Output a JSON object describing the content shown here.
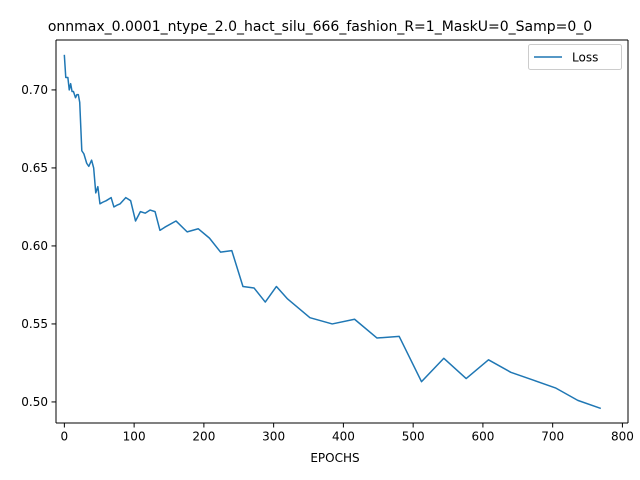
{
  "chart_data": {
    "type": "line",
    "title": "onnmax_0.0001_ntype_2.0_hact_silu_666_fashion_R=1_MaskU=0_Samp=0_0",
    "xlabel": "EPOCHS",
    "ylabel": "",
    "xlim": [
      -12,
      808
    ],
    "ylim": [
      0.4865,
      0.732
    ],
    "x_ticks": [
      0,
      100,
      200,
      300,
      400,
      500,
      600,
      700,
      800
    ],
    "x_tick_labels": [
      "0",
      "100",
      "200",
      "300",
      "400",
      "500",
      "600",
      "700",
      "800"
    ],
    "y_ticks": [
      0.5,
      0.55,
      0.6,
      0.65,
      0.7
    ],
    "y_tick_labels": [
      "0.50",
      "0.55",
      "0.60",
      "0.65",
      "0.70"
    ],
    "grid": false,
    "legend_position": "top-right",
    "series": [
      {
        "name": "Loss",
        "color": "#1f77b4",
        "x": [
          0,
          2,
          5,
          7,
          9,
          11,
          13,
          16,
          18,
          20,
          22,
          25,
          28,
          32,
          35,
          39,
          42,
          45,
          48,
          51,
          55,
          60,
          67,
          71,
          75,
          80,
          88,
          95,
          102,
          109,
          116,
          123,
          130,
          137,
          144,
          160,
          176,
          192,
          208,
          224,
          240,
          256,
          272,
          288,
          304,
          320,
          352,
          384,
          416,
          448,
          480,
          512,
          544,
          576,
          608,
          640,
          672,
          704,
          736,
          768
        ],
        "y": [
          0.722,
          0.708,
          0.708,
          0.7,
          0.704,
          0.699,
          0.699,
          0.695,
          0.697,
          0.697,
          0.692,
          0.661,
          0.659,
          0.653,
          0.651,
          0.655,
          0.65,
          0.634,
          0.638,
          0.627,
          0.628,
          0.629,
          0.631,
          0.625,
          0.626,
          0.627,
          0.631,
          0.629,
          0.616,
          0.622,
          0.621,
          0.623,
          0.622,
          0.61,
          0.612,
          0.616,
          0.609,
          0.611,
          0.605,
          0.596,
          0.597,
          0.574,
          0.573,
          0.564,
          0.574,
          0.566,
          0.554,
          0.55,
          0.553,
          0.541,
          0.542,
          0.513,
          0.528,
          0.515,
          0.527,
          0.519,
          0.514,
          0.509,
          0.501,
          0.496
        ]
      }
    ]
  }
}
